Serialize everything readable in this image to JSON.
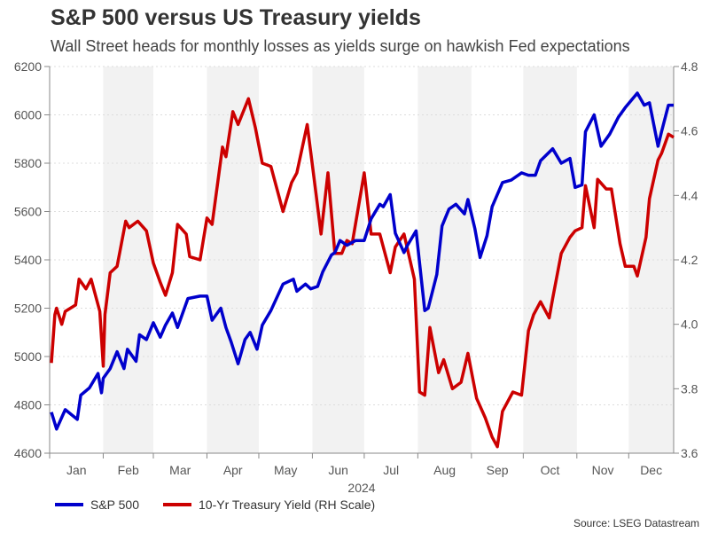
{
  "chart_data": {
    "type": "line",
    "title": "S&P 500 versus US Treasury yields",
    "subtitle": "Wall Street heads for monthly losses as yields surge on hawkish Fed expectations",
    "xlabel": "2024",
    "x_ticks": [
      "Jan",
      "Feb",
      "Mar",
      "Apr",
      "May",
      "Jun",
      "Jul",
      "Aug",
      "Sep",
      "Oct",
      "Nov",
      "Dec"
    ],
    "y_left": {
      "range": [
        4600,
        6200
      ],
      "ticks": [
        4600,
        4800,
        5000,
        5200,
        5400,
        5600,
        5800,
        6000,
        6200
      ]
    },
    "y_right": {
      "range": [
        3.6,
        4.8
      ],
      "ticks": [
        "3.6",
        "3.8",
        "4.0",
        "4.2",
        "4.4",
        "4.6",
        "4.8"
      ]
    },
    "grid": "horizontal dotted",
    "alternate_month_shading": true,
    "legend_position": "bottom-left",
    "source": "Source: LSEG Datastream",
    "series": [
      {
        "name": "S&P 500",
        "axis": "left",
        "color": "#0000cc",
        "points": [
          [
            "2024-01-02",
            4770
          ],
          [
            "2024-01-05",
            4700
          ],
          [
            "2024-01-10",
            4780
          ],
          [
            "2024-01-17",
            4740
          ],
          [
            "2024-01-19",
            4840
          ],
          [
            "2024-01-24",
            4870
          ],
          [
            "2024-01-29",
            4930
          ],
          [
            "2024-01-31",
            4850
          ],
          [
            "2024-02-01",
            4910
          ],
          [
            "2024-02-05",
            4950
          ],
          [
            "2024-02-09",
            5020
          ],
          [
            "2024-02-13",
            4950
          ],
          [
            "2024-02-15",
            5030
          ],
          [
            "2024-02-20",
            4980
          ],
          [
            "2024-02-22",
            5090
          ],
          [
            "2024-02-26",
            5070
          ],
          [
            "2024-03-01",
            5140
          ],
          [
            "2024-03-05",
            5080
          ],
          [
            "2024-03-08",
            5130
          ],
          [
            "2024-03-12",
            5180
          ],
          [
            "2024-03-15",
            5120
          ],
          [
            "2024-03-21",
            5240
          ],
          [
            "2024-03-28",
            5250
          ],
          [
            "2024-04-01",
            5250
          ],
          [
            "2024-04-04",
            5150
          ],
          [
            "2024-04-09",
            5200
          ],
          [
            "2024-04-12",
            5120
          ],
          [
            "2024-04-15",
            5060
          ],
          [
            "2024-04-19",
            4970
          ],
          [
            "2024-04-23",
            5070
          ],
          [
            "2024-04-26",
            5100
          ],
          [
            "2024-04-30",
            5030
          ],
          [
            "2024-05-03",
            5130
          ],
          [
            "2024-05-08",
            5190
          ],
          [
            "2024-05-15",
            5300
          ],
          [
            "2024-05-21",
            5320
          ],
          [
            "2024-05-23",
            5270
          ],
          [
            "2024-05-28",
            5300
          ],
          [
            "2024-05-31",
            5280
          ],
          [
            "2024-06-04",
            5290
          ],
          [
            "2024-06-07",
            5350
          ],
          [
            "2024-06-12",
            5420
          ],
          [
            "2024-06-14",
            5430
          ],
          [
            "2024-06-17",
            5480
          ],
          [
            "2024-06-21",
            5460
          ],
          [
            "2024-06-26",
            5480
          ],
          [
            "2024-07-01",
            5480
          ],
          [
            "2024-07-05",
            5570
          ],
          [
            "2024-07-10",
            5630
          ],
          [
            "2024-07-12",
            5620
          ],
          [
            "2024-07-16",
            5670
          ],
          [
            "2024-07-19",
            5510
          ],
          [
            "2024-07-24",
            5430
          ],
          [
            "2024-07-26",
            5460
          ],
          [
            "2024-07-31",
            5520
          ],
          [
            "2024-08-05",
            5190
          ],
          [
            "2024-08-07",
            5200
          ],
          [
            "2024-08-12",
            5340
          ],
          [
            "2024-08-15",
            5540
          ],
          [
            "2024-08-19",
            5610
          ],
          [
            "2024-08-23",
            5630
          ],
          [
            "2024-08-28",
            5590
          ],
          [
            "2024-08-30",
            5650
          ],
          [
            "2024-09-03",
            5530
          ],
          [
            "2024-09-06",
            5410
          ],
          [
            "2024-09-10",
            5500
          ],
          [
            "2024-09-13",
            5620
          ],
          [
            "2024-09-19",
            5720
          ],
          [
            "2024-09-24",
            5730
          ],
          [
            "2024-09-30",
            5760
          ],
          [
            "2024-10-04",
            5750
          ],
          [
            "2024-10-08",
            5750
          ],
          [
            "2024-10-11",
            5810
          ],
          [
            "2024-10-18",
            5860
          ],
          [
            "2024-10-23",
            5800
          ],
          [
            "2024-10-28",
            5820
          ],
          [
            "2024-10-31",
            5700
          ],
          [
            "2024-11-04",
            5710
          ],
          [
            "2024-11-06",
            5930
          ],
          [
            "2024-11-11",
            6000
          ],
          [
            "2024-11-15",
            5870
          ],
          [
            "2024-11-20",
            5920
          ],
          [
            "2024-11-25",
            5990
          ],
          [
            "2024-11-29",
            6030
          ],
          [
            "2024-12-06",
            6090
          ],
          [
            "2024-12-10",
            6040
          ],
          [
            "2024-12-13",
            6050
          ],
          [
            "2024-12-18",
            5870
          ],
          [
            "2024-12-20",
            5930
          ],
          [
            "2024-12-24",
            6040
          ],
          [
            "2024-12-27",
            6040
          ]
        ]
      },
      {
        "name": "10-Yr Treasury Yield (RH Scale)",
        "axis": "right",
        "color": "#cc0000",
        "points": [
          [
            "2024-01-02",
            3.88
          ],
          [
            "2024-01-04",
            4.03
          ],
          [
            "2024-01-05",
            4.05
          ],
          [
            "2024-01-08",
            4.0
          ],
          [
            "2024-01-10",
            4.04
          ],
          [
            "2024-01-16",
            4.06
          ],
          [
            "2024-01-18",
            4.14
          ],
          [
            "2024-01-22",
            4.11
          ],
          [
            "2024-01-25",
            4.14
          ],
          [
            "2024-01-30",
            4.04
          ],
          [
            "2024-02-01",
            3.87
          ],
          [
            "2024-02-02",
            4.03
          ],
          [
            "2024-02-05",
            4.16
          ],
          [
            "2024-02-09",
            4.18
          ],
          [
            "2024-02-14",
            4.32
          ],
          [
            "2024-02-16",
            4.3
          ],
          [
            "2024-02-21",
            4.32
          ],
          [
            "2024-02-26",
            4.29
          ],
          [
            "2024-03-01",
            4.19
          ],
          [
            "2024-03-05",
            4.13
          ],
          [
            "2024-03-08",
            4.09
          ],
          [
            "2024-03-12",
            4.16
          ],
          [
            "2024-03-15",
            4.31
          ],
          [
            "2024-03-20",
            4.28
          ],
          [
            "2024-03-22",
            4.21
          ],
          [
            "2024-03-28",
            4.2
          ],
          [
            "2024-04-01",
            4.33
          ],
          [
            "2024-04-04",
            4.31
          ],
          [
            "2024-04-10",
            4.55
          ],
          [
            "2024-04-12",
            4.52
          ],
          [
            "2024-04-16",
            4.66
          ],
          [
            "2024-04-19",
            4.62
          ],
          [
            "2024-04-25",
            4.7
          ],
          [
            "2024-04-29",
            4.61
          ],
          [
            "2024-05-03",
            4.5
          ],
          [
            "2024-05-08",
            4.49
          ],
          [
            "2024-05-15",
            4.35
          ],
          [
            "2024-05-20",
            4.44
          ],
          [
            "2024-05-23",
            4.47
          ],
          [
            "2024-05-29",
            4.62
          ],
          [
            "2024-06-03",
            4.41
          ],
          [
            "2024-06-06",
            4.28
          ],
          [
            "2024-06-10",
            4.47
          ],
          [
            "2024-06-14",
            4.22
          ],
          [
            "2024-06-18",
            4.22
          ],
          [
            "2024-06-21",
            4.26
          ],
          [
            "2024-06-24",
            4.25
          ],
          [
            "2024-07-01",
            4.47
          ],
          [
            "2024-07-05",
            4.28
          ],
          [
            "2024-07-10",
            4.28
          ],
          [
            "2024-07-16",
            4.16
          ],
          [
            "2024-07-19",
            4.24
          ],
          [
            "2024-07-24",
            4.28
          ],
          [
            "2024-07-30",
            4.14
          ],
          [
            "2024-08-02",
            3.79
          ],
          [
            "2024-08-05",
            3.78
          ],
          [
            "2024-08-08",
            3.99
          ],
          [
            "2024-08-13",
            3.85
          ],
          [
            "2024-08-16",
            3.89
          ],
          [
            "2024-08-21",
            3.8
          ],
          [
            "2024-08-26",
            3.82
          ],
          [
            "2024-08-30",
            3.91
          ],
          [
            "2024-09-04",
            3.77
          ],
          [
            "2024-09-09",
            3.71
          ],
          [
            "2024-09-13",
            3.65
          ],
          [
            "2024-09-16",
            3.62
          ],
          [
            "2024-09-19",
            3.73
          ],
          [
            "2024-09-25",
            3.79
          ],
          [
            "2024-09-30",
            3.78
          ],
          [
            "2024-10-04",
            3.98
          ],
          [
            "2024-10-07",
            4.03
          ],
          [
            "2024-10-11",
            4.07
          ],
          [
            "2024-10-16",
            4.02
          ],
          [
            "2024-10-18",
            4.08
          ],
          [
            "2024-10-23",
            4.22
          ],
          [
            "2024-10-28",
            4.27
          ],
          [
            "2024-10-31",
            4.29
          ],
          [
            "2024-11-04",
            4.3
          ],
          [
            "2024-11-06",
            4.43
          ],
          [
            "2024-11-11",
            4.3
          ],
          [
            "2024-11-13",
            4.45
          ],
          [
            "2024-11-18",
            4.42
          ],
          [
            "2024-11-21",
            4.42
          ],
          [
            "2024-11-26",
            4.25
          ],
          [
            "2024-11-29",
            4.18
          ],
          [
            "2024-12-04",
            4.18
          ],
          [
            "2024-12-06",
            4.15
          ],
          [
            "2024-12-11",
            4.27
          ],
          [
            "2024-12-13",
            4.39
          ],
          [
            "2024-12-18",
            4.51
          ],
          [
            "2024-12-20",
            4.53
          ],
          [
            "2024-12-24",
            4.59
          ],
          [
            "2024-12-27",
            4.58
          ]
        ]
      }
    ]
  }
}
